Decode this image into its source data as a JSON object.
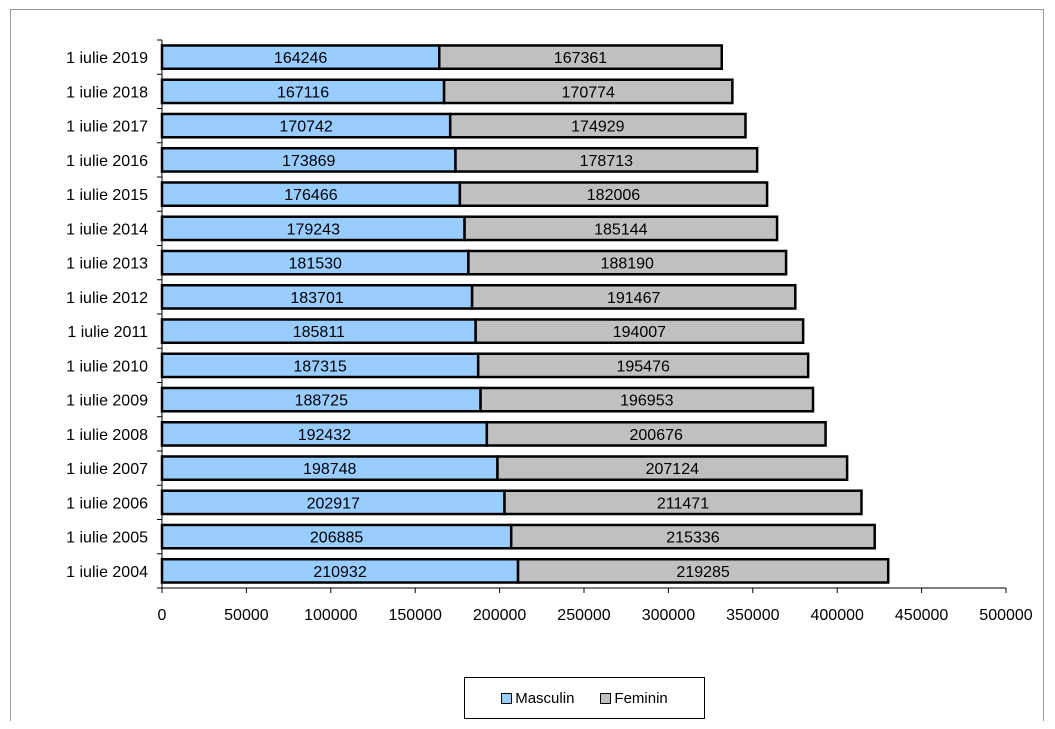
{
  "chart_data": {
    "type": "bar",
    "orientation": "horizontal",
    "stacked": true,
    "categories": [
      "1 iulie 2004",
      "1 iulie 2005",
      "1 iulie 2006",
      "1 iulie 2007",
      "1 iulie 2008",
      "1 iulie 2009",
      "1 iulie 2010",
      "1 iulie 2011",
      "1 iulie 2012",
      "1 iulie 2013",
      "1 iulie 2014",
      "1 iulie 2015",
      "1 iulie 2016",
      "1 iulie 2017",
      "1 iulie 2018",
      "1 iulie 2019"
    ],
    "series": [
      {
        "name": "Masculin",
        "color": "#99ccff",
        "values": [
          210932,
          206885,
          202917,
          198748,
          192432,
          188725,
          187315,
          185811,
          183701,
          181530,
          179243,
          176466,
          173869,
          170742,
          167116,
          164246
        ]
      },
      {
        "name": "Feminin",
        "color": "#c0c0c0",
        "values": [
          219285,
          215336,
          211471,
          207124,
          200676,
          196953,
          195476,
          194007,
          191467,
          188190,
          185144,
          182006,
          178713,
          174929,
          170774,
          167361
        ]
      }
    ],
    "xlim": [
      0,
      500000
    ],
    "xticks": [
      0,
      50000,
      100000,
      150000,
      200000,
      250000,
      300000,
      350000,
      400000,
      450000,
      500000
    ],
    "grid": false,
    "legend_position": "bottom",
    "title": "",
    "xlabel": "",
    "ylabel": ""
  }
}
